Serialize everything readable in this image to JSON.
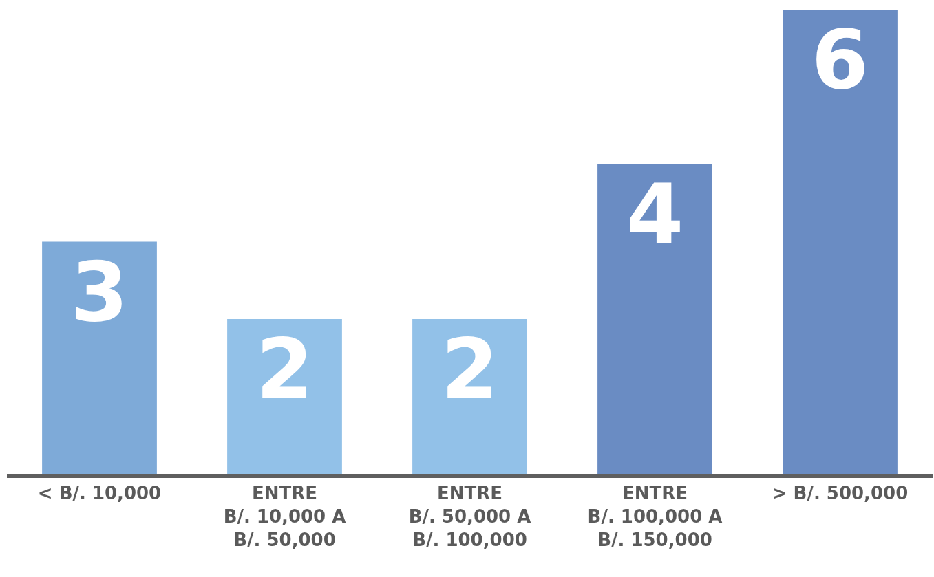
{
  "chart_data": {
    "type": "bar",
    "categories": [
      "< B/. 10,000",
      "ENTRE\nB/. 10,000 A\nB/. 50,000",
      "ENTRE\nB/. 50,000 A\nB/. 100,000",
      "ENTRE\nB/. 100,000 A\nB/. 150,000",
      "> B/. 500,000"
    ],
    "values": [
      3,
      2,
      2,
      4,
      6
    ],
    "colors": [
      "#7eaad8",
      "#92c1e8",
      "#92c1e8",
      "#6a8cc3",
      "#6a8cc3"
    ],
    "data_labels": true
  }
}
